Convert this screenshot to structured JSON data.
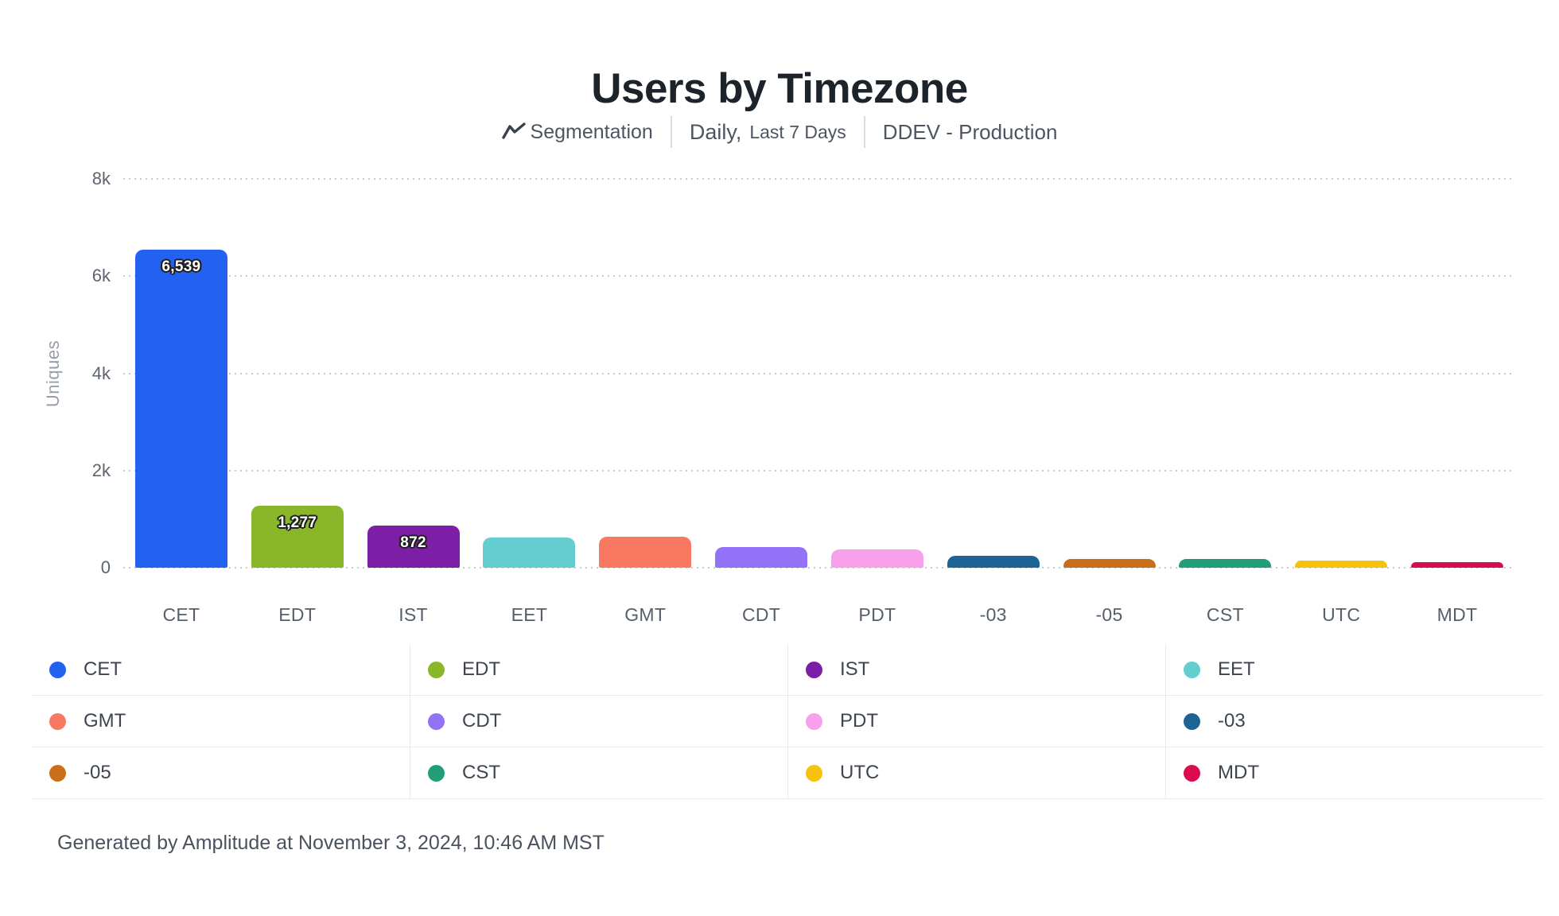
{
  "header": {
    "title": "Users by Timezone",
    "segmentation_label": "Segmentation",
    "date_interval": "Daily,",
    "date_range": "Last 7 Days",
    "project": "DDEV - Production"
  },
  "chart_data": {
    "type": "bar",
    "title": "Users by Timezone",
    "categories": [
      "CET",
      "EDT",
      "IST",
      "EET",
      "GMT",
      "CDT",
      "PDT",
      "-03",
      "-05",
      "CST",
      "UTC",
      "MDT"
    ],
    "values": [
      6539,
      1277,
      872,
      620,
      645,
      430,
      380,
      245,
      180,
      180,
      150,
      115
    ],
    "value_labels": [
      "6,539",
      "1,277",
      "872",
      "",
      "",
      "",
      "",
      "",
      "",
      "",
      "",
      ""
    ],
    "bar_colors": [
      "#2361f0",
      "#8ab629",
      "#7c1fa6",
      "#63cdcf",
      "#f97862",
      "#9472f8",
      "#f8a1ea",
      "#1c6496",
      "#c96f1a",
      "#219e78",
      "#f5c30b",
      "#d90d4e"
    ],
    "xlabel": "",
    "ylabel": "Uniques",
    "ylim": [
      0,
      8000
    ],
    "yticks": [
      {
        "value": 0,
        "label": "0"
      },
      {
        "value": 2000,
        "label": "2k"
      },
      {
        "value": 4000,
        "label": "4k"
      },
      {
        "value": 6000,
        "label": "6k"
      },
      {
        "value": 8000,
        "label": "8k"
      }
    ],
    "grid": "horizontal-dotted",
    "legend_position": "bottom",
    "legend": [
      "CET",
      "EDT",
      "IST",
      "EET",
      "GMT",
      "CDT",
      "PDT",
      "-03",
      "-05",
      "CST",
      "UTC",
      "MDT"
    ]
  },
  "footer": {
    "text": "Generated by Amplitude at November 3, 2024, 10:46 AM MST"
  }
}
